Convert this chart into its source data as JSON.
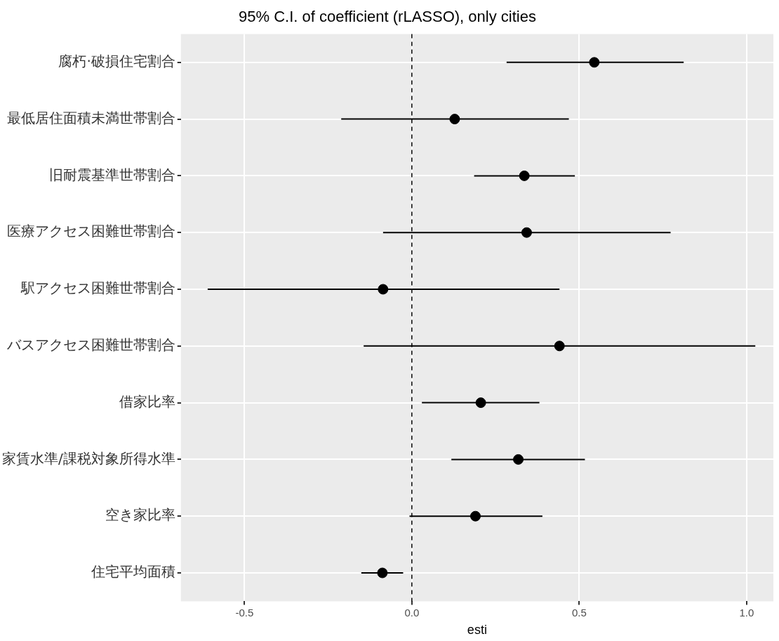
{
  "chart_data": {
    "type": "scatter",
    "orientation": "horizontal",
    "title": "95% C.I. of coefficient (rLASSO), only cities",
    "xlabel": "esti",
    "categories": [
      "腐朽·破損住宅割合",
      "最低居住面積未満世帯割合",
      "旧耐震基準世帯割合",
      "医療アクセス困難世帯割合",
      "駅アクセス困難世帯割合",
      "バスアクセス困難世帯割合",
      "借家比率",
      "家賃水準/課税対象所得水準",
      "空き家比率",
      "住宅平均面積"
    ],
    "values": [
      0.545,
      0.128,
      0.336,
      0.343,
      -0.086,
      0.441,
      0.206,
      0.318,
      0.19,
      -0.088
    ],
    "errors": [
      [
        0.283,
        0.812
      ],
      [
        -0.211,
        0.469
      ],
      [
        0.186,
        0.487
      ],
      [
        -0.086,
        0.773
      ],
      [
        -0.61,
        0.441
      ],
      [
        -0.144,
        1.026
      ],
      [
        0.03,
        0.381
      ],
      [
        0.118,
        0.517
      ],
      [
        -0.007,
        0.39
      ],
      [
        -0.151,
        -0.026
      ]
    ],
    "color": "#000000",
    "marker": "circle",
    "xlim": [
      -0.69,
      1.08
    ],
    "xticks": [
      {
        "value": -0.5,
        "label": "-0.5"
      },
      {
        "value": 0,
        "label": "0.0"
      },
      {
        "value": 0.5,
        "label": "0.5"
      },
      {
        "value": 1,
        "label": "1.0"
      }
    ],
    "ref_lines": [
      {
        "axis": "x",
        "value": 0,
        "line_style": "dashed",
        "color": "#000000"
      }
    ],
    "grid": true,
    "legend": false
  }
}
